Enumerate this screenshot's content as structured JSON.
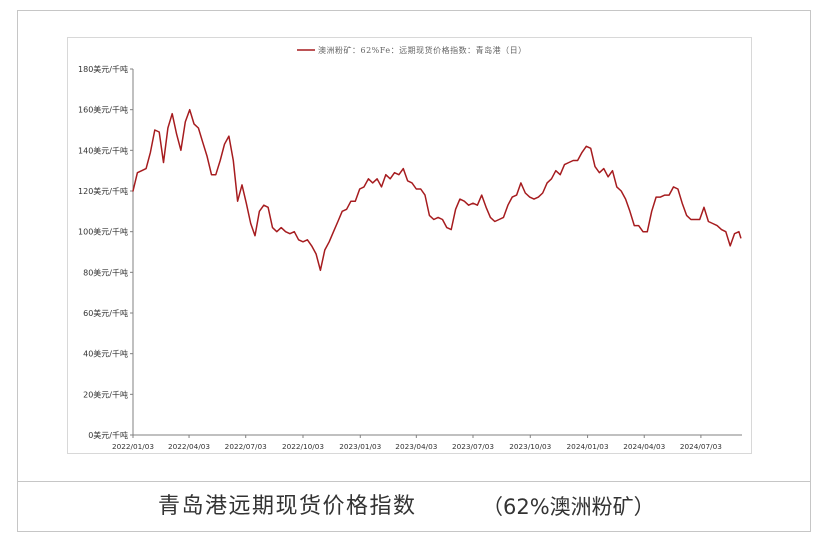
{
  "caption": {
    "title": "青岛港远期现货价格指数",
    "subtitle": "（62%澳洲粉矿）"
  },
  "chart_data": {
    "type": "line",
    "title": "",
    "xlabel": "",
    "ylabel": "",
    "grid": false,
    "legend": {
      "position": "top-center"
    },
    "xlim": [
      "2022-01-03",
      "2024-09-07"
    ],
    "ylim": [
      0,
      180
    ],
    "ytick_values": [
      0,
      20,
      40,
      60,
      80,
      100,
      120,
      140,
      160,
      180
    ],
    "ytick_unit": "美元/千吨",
    "xtick_labels": [
      "2022/01/03",
      "2022/04/03",
      "2022/07/03",
      "2022/10/03",
      "2023/01/03",
      "2023/04/03",
      "2023/07/03",
      "2023/10/03",
      "2024/01/03",
      "2024/04/03",
      "2024/07/03"
    ],
    "series": [
      {
        "name": "澳洲粉矿：62%Fe：远期现货价格指数：青岛港（日）",
        "color": "#a61c1f",
        "x": [
          "2022-01-03",
          "2022-01-10",
          "2022-01-17",
          "2022-01-24",
          "2022-01-31",
          "2022-02-07",
          "2022-02-14",
          "2022-02-21",
          "2022-02-28",
          "2022-03-07",
          "2022-03-14",
          "2022-03-21",
          "2022-03-28",
          "2022-04-04",
          "2022-04-11",
          "2022-04-18",
          "2022-04-25",
          "2022-05-02",
          "2022-05-09",
          "2022-05-16",
          "2022-05-23",
          "2022-05-30",
          "2022-06-06",
          "2022-06-13",
          "2022-06-20",
          "2022-06-27",
          "2022-07-04",
          "2022-07-11",
          "2022-07-18",
          "2022-07-25",
          "2022-08-01",
          "2022-08-08",
          "2022-08-15",
          "2022-08-22",
          "2022-08-29",
          "2022-09-05",
          "2022-09-12",
          "2022-09-19",
          "2022-09-26",
          "2022-10-03",
          "2022-10-10",
          "2022-10-17",
          "2022-10-24",
          "2022-10-31",
          "2022-11-07",
          "2022-11-14",
          "2022-11-21",
          "2022-11-28",
          "2022-12-05",
          "2022-12-12",
          "2022-12-19",
          "2022-12-26",
          "2023-01-02",
          "2023-01-09",
          "2023-01-16",
          "2023-01-23",
          "2023-01-30",
          "2023-02-06",
          "2023-02-13",
          "2023-02-20",
          "2023-02-27",
          "2023-03-06",
          "2023-03-13",
          "2023-03-20",
          "2023-03-27",
          "2023-04-03",
          "2023-04-10",
          "2023-04-17",
          "2023-04-24",
          "2023-05-01",
          "2023-05-08",
          "2023-05-15",
          "2023-05-22",
          "2023-05-29",
          "2023-06-05",
          "2023-06-12",
          "2023-06-19",
          "2023-06-26",
          "2023-07-03",
          "2023-07-10",
          "2023-07-17",
          "2023-07-24",
          "2023-07-31",
          "2023-08-07",
          "2023-08-14",
          "2023-08-21",
          "2023-08-28",
          "2023-09-04",
          "2023-09-11",
          "2023-09-18",
          "2023-09-25",
          "2023-10-02",
          "2023-10-09",
          "2023-10-16",
          "2023-10-23",
          "2023-10-30",
          "2023-11-06",
          "2023-11-13",
          "2023-11-20",
          "2023-11-27",
          "2023-12-04",
          "2023-12-11",
          "2023-12-18",
          "2023-12-25",
          "2024-01-01",
          "2024-01-08",
          "2024-01-15",
          "2024-01-22",
          "2024-01-29",
          "2024-02-05",
          "2024-02-12",
          "2024-02-19",
          "2024-02-26",
          "2024-03-04",
          "2024-03-11",
          "2024-03-18",
          "2024-03-25",
          "2024-04-01",
          "2024-04-08",
          "2024-04-15",
          "2024-04-22",
          "2024-04-29",
          "2024-05-06",
          "2024-05-13",
          "2024-05-20",
          "2024-05-27",
          "2024-06-03",
          "2024-06-10",
          "2024-06-17",
          "2024-06-24",
          "2024-07-01",
          "2024-07-08",
          "2024-07-15",
          "2024-07-22",
          "2024-07-29",
          "2024-08-05",
          "2024-08-12",
          "2024-08-19",
          "2024-08-26",
          "2024-09-02",
          "2024-09-05"
        ],
        "y": [
          120,
          129,
          130,
          131,
          139,
          150,
          149,
          134,
          151,
          158,
          148,
          140,
          154,
          160,
          153,
          151,
          144,
          137,
          128,
          128,
          135,
          143,
          147,
          135,
          115,
          123,
          114,
          104,
          98,
          110,
          113,
          112,
          102,
          100,
          102,
          100,
          99,
          100,
          96,
          95,
          96,
          93,
          89,
          81,
          91,
          95,
          100,
          105,
          110,
          111,
          115,
          115,
          121,
          122,
          126,
          124,
          126,
          122,
          128,
          126,
          129,
          128,
          131,
          125,
          124,
          121,
          121,
          118,
          108,
          106,
          107,
          106,
          102,
          101,
          111,
          116,
          115,
          113,
          114,
          113,
          118,
          112,
          107,
          105,
          106,
          107,
          113,
          117,
          118,
          124,
          119,
          117,
          116,
          117,
          119,
          124,
          126,
          130,
          128,
          133,
          134,
          135,
          135,
          139,
          142,
          141,
          132,
          129,
          131,
          127,
          130,
          122,
          120,
          116,
          110,
          103,
          103,
          100,
          100,
          110,
          117,
          117,
          118,
          118,
          122,
          121,
          114,
          108,
          106,
          106,
          106,
          112,
          105,
          104,
          103,
          101,
          100,
          93,
          99,
          100,
          97
        ]
      }
    ]
  }
}
